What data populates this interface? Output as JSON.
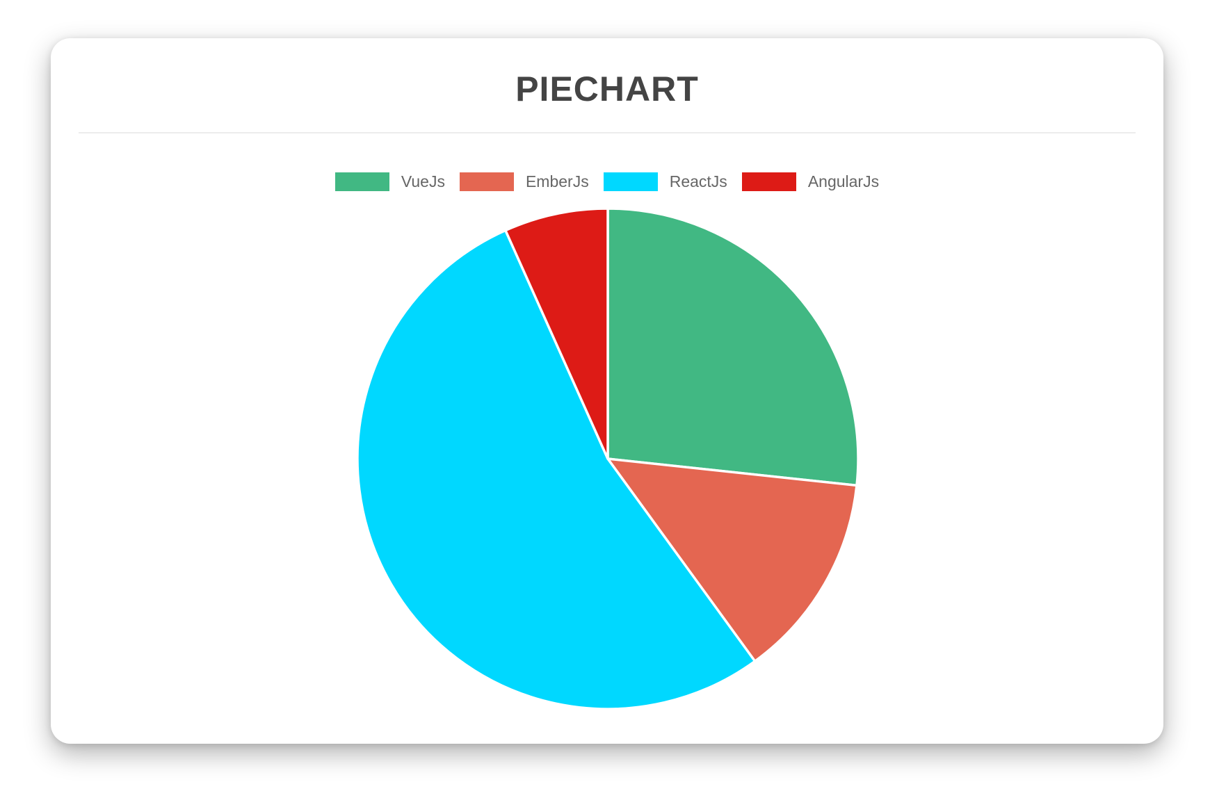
{
  "chart_data": {
    "type": "pie",
    "title": "PIECHART",
    "categories": [
      "VueJs",
      "EmberJs",
      "ReactJs",
      "AngularJs"
    ],
    "values": [
      26.7,
      13.3,
      53.3,
      6.7
    ],
    "values_unit": "percent_of_circle_estimated_from_slice_angles",
    "colors": [
      "#41B883",
      "#E46651",
      "#00D8FF",
      "#DD1B16"
    ],
    "legend_position": "top",
    "start_angle_deg": 0,
    "direction": "clockwise",
    "slice_border_color": "#FFFFFF"
  },
  "theme": {
    "page_background": "#FFFFFF",
    "card_background": "#FFFFFF",
    "title_color": "#444444",
    "legend_text_color": "#666666",
    "divider_color": "#ECECEC"
  }
}
